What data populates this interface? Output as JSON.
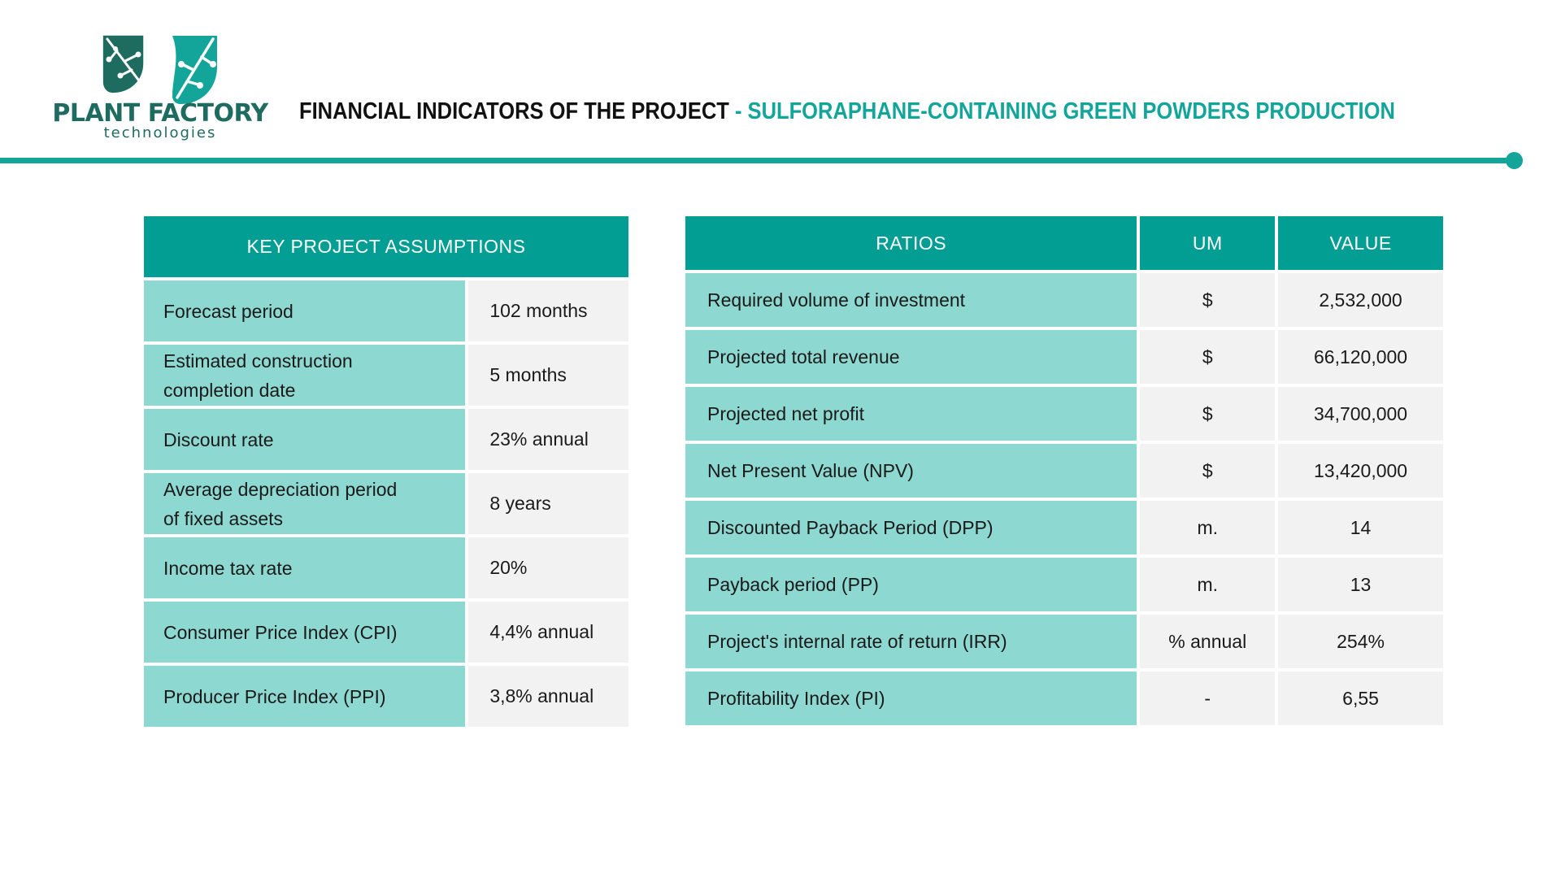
{
  "logo": {
    "title": "PLANT FACTORY",
    "subtitle": "technologies",
    "icon": "leaf-logo-icon"
  },
  "header": {
    "title_main": "FINANCIAL INDICATORS OF THE PROJECT",
    "title_accent": " - SULFORAPHANE-CONTAINING GREEN POWDERS  PRODUCTION"
  },
  "colors": {
    "accent": "#13a59a",
    "header_fill": "#039e93",
    "label_fill": "#8dd8d1",
    "value_fill": "#f2f2f2",
    "logo": "#1e6b5f"
  },
  "assumptions": {
    "header": "KEY PROJECT ASSUMPTIONS",
    "rows": [
      {
        "label_lines": [
          "Forecast period"
        ],
        "value": "102 months"
      },
      {
        "label_lines": [
          "Estimated construction",
          "completion date"
        ],
        "value": "5 months"
      },
      {
        "label_lines": [
          "Discount rate"
        ],
        "value": "23% annual"
      },
      {
        "label_lines": [
          "Average depreciation period",
          "of fixed assets"
        ],
        "value": "8 years"
      },
      {
        "label_lines": [
          "Income tax rate"
        ],
        "value": "20%"
      },
      {
        "label_lines": [
          "Consumer Price Index (CPI)"
        ],
        "value": "4,4% annual"
      },
      {
        "label_lines": [
          "Producer Price Index (PPI)"
        ],
        "value": "3,8% annual"
      }
    ]
  },
  "ratios": {
    "headers": {
      "ratio": "RATIOS",
      "um": "UM",
      "value": "VALUE"
    },
    "rows": [
      {
        "ratio": "Required volume of investment",
        "um": "$",
        "value": "2,532,000"
      },
      {
        "ratio": "Projected total revenue",
        "um": "$",
        "value": "66,120,000"
      },
      {
        "ratio": "Projected net profit",
        "um": "$",
        "value": "34,700,000"
      },
      {
        "ratio": "Net Present Value (NPV)",
        "um": "$",
        "value": "13,420,000"
      },
      {
        "ratio": "Discounted Payback Period (DPP)",
        "um": "m.",
        "value": "14"
      },
      {
        "ratio": "Payback period (PP)",
        "um": "m.",
        "value": "13"
      },
      {
        "ratio": "Project's internal rate of return (IRR)",
        "um": "% annual",
        "value": "254%"
      },
      {
        "ratio": "Profitability Index (PI)",
        "um": "-",
        "value": "6,55"
      }
    ]
  }
}
